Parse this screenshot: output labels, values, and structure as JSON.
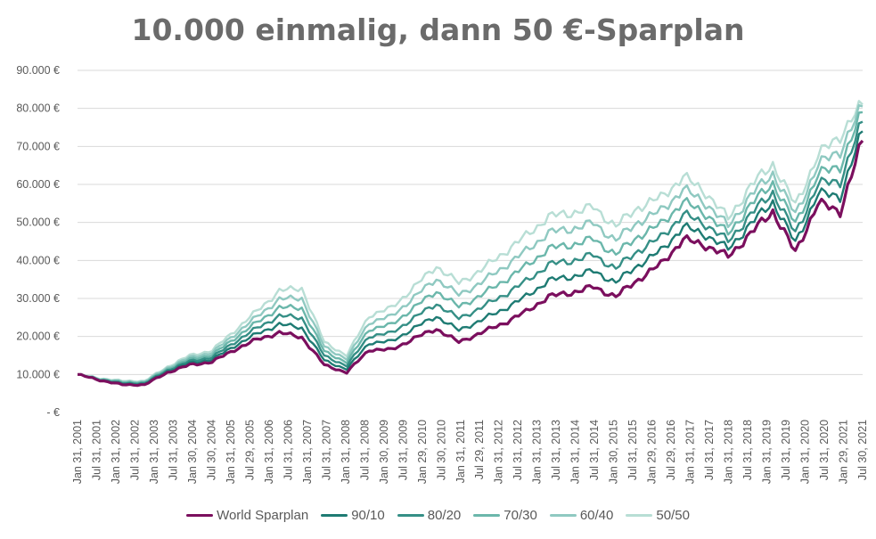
{
  "chart_data": {
    "type": "line",
    "title": "10.000 einmalig, dann 50 €-Sparplan",
    "xlabel": "",
    "ylabel": "",
    "ylim": [
      0,
      90000
    ],
    "y_ticks": [
      0,
      10000,
      20000,
      30000,
      40000,
      50000,
      60000,
      70000,
      80000,
      90000
    ],
    "y_tick_labels": [
      "-  €",
      "10.000 €",
      "20.000 €",
      "30.000 €",
      "40.000 €",
      "50.000 €",
      "60.000 €",
      "70.000 €",
      "80.000 €",
      "90.000 €"
    ],
    "x_tick_labels": [
      "Jan 31, 2001",
      "Jul 31, 2001",
      "Jan 31, 2002",
      "Jul 31, 2002",
      "Jan 31, 2003",
      "Jul 31, 2003",
      "Jan 30, 2004",
      "Jul 30, 2004",
      "Jan 31, 2005",
      "Jul 29, 2005",
      "Jan 31, 2006",
      "Jul 31, 2006",
      "Jan 31, 2007",
      "Jul 31, 2007",
      "Jan 31, 2008",
      "Jul 31, 2008",
      "Jan 30, 2009",
      "Jul 31, 2009",
      "Jan 29, 2010",
      "Jul 30, 2010",
      "Jan 31, 2011",
      "Jul 29, 2011",
      "Jan 31, 2012",
      "Jul 31, 2012",
      "Jan 31, 2013",
      "Jul 31, 2013",
      "Jan 31, 2014",
      "Jul 31, 2014",
      "Jan 30, 2015",
      "Jul 31, 2015",
      "Jan 29, 2016",
      "Jul 29, 2016",
      "Jan 31, 2017",
      "Jul 31, 2017",
      "Jan 31, 2018",
      "Jul 31, 2018",
      "Jan 31, 2019",
      "Jul 31, 2019",
      "Jan 31, 2020",
      "Jul 31, 2020",
      "Jan 29, 2021",
      "Jul 30, 2021"
    ],
    "grid": true,
    "legend_position": "bottom",
    "series": [
      {
        "name": "World Sparplan",
        "color": "#7b0f5e",
        "width": 3.2,
        "values": [
          10000,
          8500,
          7300,
          7300,
          10500,
          12500,
          13300,
          16500,
          19200,
          21000,
          19800,
          12500,
          10500,
          16500,
          16500,
          19500,
          22000,
          18500,
          21000,
          23500,
          26500,
          30500,
          31500,
          33000,
          30500,
          35000,
          39000,
          45500,
          44000,
          41000,
          47000,
          53000,
          42000,
          55000,
          53000,
          71500
        ]
      },
      {
        "name": "90/10",
        "color": "#1e7b73",
        "width": 2.4,
        "values": [
          10000,
          8600,
          7500,
          7500,
          10800,
          13000,
          13900,
          17500,
          20700,
          23200,
          22300,
          13700,
          11400,
          18300,
          18700,
          22200,
          25300,
          21600,
          24300,
          27200,
          30500,
          34700,
          35700,
          37200,
          34200,
          38800,
          42500,
          48800,
          46800,
          43000,
          49500,
          55500,
          44500,
          57500,
          57000,
          74000
        ]
      },
      {
        "name": "80/20",
        "color": "#358f86",
        "width": 2.4,
        "values": [
          10000,
          8700,
          7700,
          7700,
          11100,
          13500,
          14500,
          18500,
          22200,
          25400,
          24900,
          14900,
          12300,
          20100,
          20900,
          24900,
          28600,
          24700,
          27600,
          30900,
          34500,
          38900,
          39900,
          41400,
          37900,
          42600,
          46000,
          52100,
          49600,
          45000,
          52000,
          58000,
          47000,
          60000,
          61000,
          76500
        ]
      },
      {
        "name": "70/30",
        "color": "#6bb7ab",
        "width": 2.4,
        "values": [
          10000,
          8800,
          7900,
          7900,
          11400,
          14000,
          15100,
          19500,
          23700,
          27600,
          27500,
          16100,
          13200,
          21900,
          23100,
          27600,
          31900,
          27800,
          30900,
          34600,
          38500,
          43100,
          44100,
          45600,
          41600,
          46400,
          49500,
          55400,
          52400,
          47000,
          54500,
          60500,
          49500,
          62500,
          65000,
          79000
        ]
      },
      {
        "name": "60/40",
        "color": "#8fc9c1",
        "width": 2.4,
        "values": [
          10000,
          8900,
          8100,
          8100,
          11700,
          14500,
          15700,
          20500,
          25200,
          29800,
          30100,
          17300,
          14100,
          23700,
          25300,
          30300,
          35200,
          30900,
          34200,
          38300,
          42500,
          47300,
          48300,
          49800,
          45300,
          50200,
          53000,
          58700,
          55200,
          49000,
          57000,
          63000,
          52000,
          65000,
          69000,
          80500
        ]
      },
      {
        "name": "50/50",
        "color": "#b8ded5",
        "width": 2.4,
        "values": [
          10000,
          9000,
          8300,
          8300,
          12000,
          15000,
          16300,
          21500,
          26700,
          32000,
          32700,
          18500,
          15000,
          25500,
          27500,
          33000,
          38500,
          34000,
          37500,
          42000,
          46500,
          51500,
          52500,
          54000,
          49000,
          54000,
          56500,
          62000,
          58000,
          51000,
          59500,
          65500,
          54500,
          67500,
          73000,
          81000
        ]
      }
    ]
  }
}
